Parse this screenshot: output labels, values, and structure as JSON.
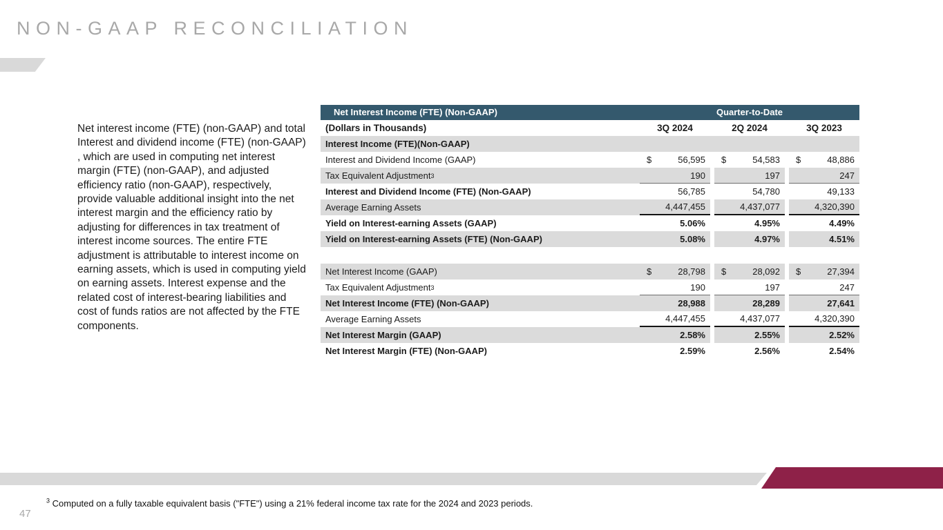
{
  "colors": {
    "accent_maroon": "#8E2148",
    "header_slate": "#34596D",
    "stripe_gray": "#DBDBDB",
    "decor_gray": "#D9D9D9",
    "title_gray": "#A8A8A8"
  },
  "slide": {
    "title": "NON-GAAP RECONCILIATION",
    "page_number": "47",
    "footnote_marker": "3",
    "footnote": "Computed on a fully taxable equivalent basis (\"FTE\") using a 21% federal income tax rate for the 2024 and 2023 periods.",
    "body_paragraph": "Net interest income (FTE) (non-GAAP) and total Interest and dividend income (FTE) (non-GAAP) , which are used in computing net interest margin (FTE) (non-GAAP), and adjusted efficiency ratio (non-GAAP), respectively, provide valuable additional insight into the net interest margin and the efficiency ratio by adjusting for differences in tax treatment of interest income sources. The entire FTE adjustment is attributable to interest income on earning assets, which is used in computing yield on earning assets. Interest expense and the related cost of interest-bearing liabilities and cost of funds ratios are not affected by the FTE components."
  },
  "table": {
    "header_title": "Net Interest Income (FTE) (Non-GAAP)",
    "header_period": "Quarter-to-Date",
    "subheader_label": "(Dollars in Thousands)",
    "columns": [
      "3Q 2024",
      "2Q 2024",
      "3Q 2023"
    ],
    "sections": [
      {
        "rows": [
          {
            "label": "Interest Income (FTE)(Non-GAAP)",
            "bg": "gray",
            "bold_label": true,
            "values": null,
            "section_header": true
          },
          {
            "label": "Interest and Dividend Income (GAAP)",
            "bg": "white",
            "dollar": true,
            "values": [
              "56,595",
              "54,583",
              "48,886"
            ]
          },
          {
            "label": "Tax Equivalent Adjustment",
            "sup": "3",
            "bg": "gray",
            "values": [
              "190",
              "197",
              "247"
            ],
            "rule": "thin"
          },
          {
            "label": "Interest and Dividend Income (FTE) (Non-GAAP)",
            "bg": "white",
            "bold_label": true,
            "values": [
              "56,785",
              "54,780",
              "49,133"
            ]
          },
          {
            "label": "Average Earning Assets",
            "bg": "gray",
            "values": [
              "4,447,455",
              "4,437,077",
              "4,320,390"
            ],
            "rule": "thick"
          },
          {
            "label": "Yield on Interest-earning Assets (GAAP)",
            "bg": "white",
            "bold_label": true,
            "bold_values": true,
            "values": [
              "5.06%",
              "4.95%",
              "4.49%"
            ]
          },
          {
            "label": "Yield on Interest-earning Assets (FTE) (Non-GAAP)",
            "bg": "gray",
            "bold_label": true,
            "bold_values": true,
            "values": [
              "5.08%",
              "4.97%",
              "4.51%"
            ]
          }
        ]
      },
      {
        "rows": [
          {
            "label": "Net Interest Income (GAAP)",
            "bg": "gray",
            "dollar": true,
            "values": [
              "28,798",
              "28,092",
              "27,394"
            ]
          },
          {
            "label": "Tax Equivalent Adjustment",
            "sup": "3",
            "bg": "white",
            "values": [
              "190",
              "197",
              "247"
            ],
            "rule": "thin"
          },
          {
            "label": "Net Interest Income (FTE) (Non-GAAP)",
            "bg": "gray",
            "bold_label": true,
            "bold_values": true,
            "values": [
              "28,988",
              "28,289",
              "27,641"
            ]
          },
          {
            "label": "Average Earning Assets",
            "bg": "white",
            "values": [
              "4,447,455",
              "4,437,077",
              "4,320,390"
            ],
            "rule": "thick"
          },
          {
            "label": "Net Interest Margin (GAAP)",
            "bg": "gray",
            "bold_label": true,
            "bold_values": true,
            "values": [
              "2.58%",
              "2.55%",
              "2.52%"
            ]
          },
          {
            "label": "Net Interest Margin (FTE) (Non-GAAP)",
            "bg": "white",
            "bold_label": true,
            "bold_values": true,
            "values": [
              "2.59%",
              "2.56%",
              "2.54%"
            ]
          }
        ]
      }
    ]
  }
}
